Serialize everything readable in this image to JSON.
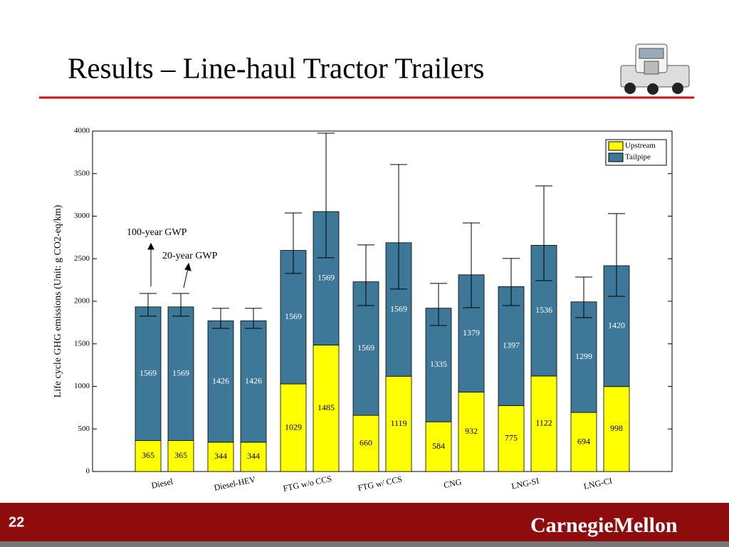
{
  "slide": {
    "title": "Results – Line-haul Tractor Trailers",
    "page_number": "22",
    "logo_text": "CarnegieMellon"
  },
  "chart_data": {
    "type": "bar",
    "stacked": true,
    "ylabel": "Life cycle GHG emissions (Unit: g CO2-eq/km)",
    "categories": [
      "Diesel",
      "Diesel-HEV",
      "FTG w/o CCS",
      "FTG w/ CCS",
      "CNG",
      "LNG-SI",
      "LNG-CI"
    ],
    "series": [
      {
        "name": "Upstream",
        "color": "#ffff00",
        "values": [
          [
            365,
            365
          ],
          [
            344,
            344
          ],
          [
            1029,
            1485
          ],
          [
            660,
            1119
          ],
          [
            584,
            932
          ],
          [
            775,
            1122
          ],
          [
            694,
            998
          ]
        ]
      },
      {
        "name": "Tailpipe",
        "color": "#3e7898",
        "values": [
          [
            1569,
            1569
          ],
          [
            1426,
            1426
          ],
          [
            1569,
            1569
          ],
          [
            1569,
            1569
          ],
          [
            1335,
            1379
          ],
          [
            1397,
            1536
          ],
          [
            1299,
            1420
          ]
        ]
      }
    ],
    "error_ranges": [
      [
        [
          1825,
          2092
        ],
        [
          1825,
          2092
        ]
      ],
      [
        [
          1682,
          1917
        ],
        [
          1682,
          1917
        ]
      ],
      [
        [
          2327,
          3038
        ],
        [
          2511,
          3975
        ]
      ],
      [
        [
          1950,
          2662
        ],
        [
          2143,
          3607
        ]
      ],
      [
        [
          1716,
          2210
        ],
        [
          1925,
          2921
        ]
      ],
      [
        [
          1950,
          2503
        ],
        [
          2243,
          3356
        ]
      ],
      [
        [
          1808,
          2285
        ],
        [
          2059,
          3030
        ]
      ]
    ],
    "annotations": [
      "100-year GWP",
      "20-year GWP"
    ],
    "ylim": [
      0,
      4000
    ],
    "yticks": [
      0,
      500,
      1000,
      1500,
      2000,
      2500,
      3000,
      3500,
      4000
    ],
    "legend": "upper right"
  }
}
